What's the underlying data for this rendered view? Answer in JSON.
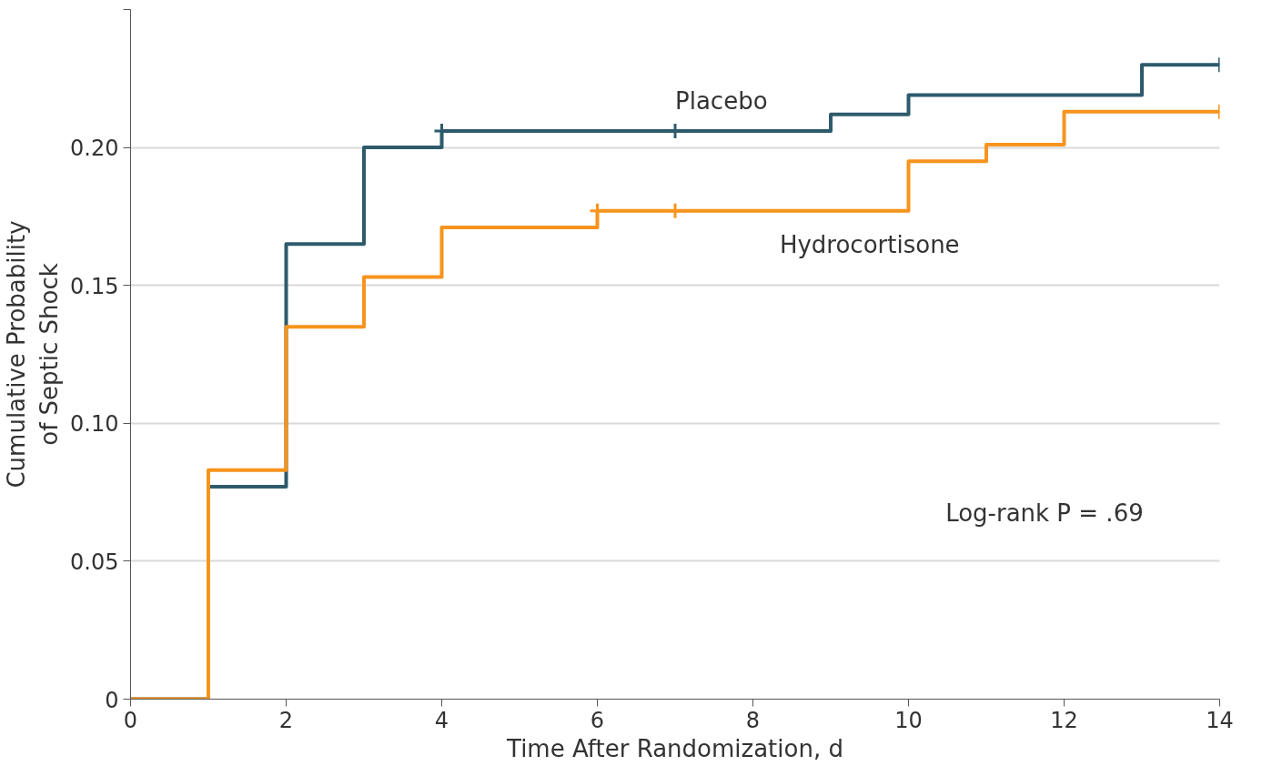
{
  "chart_data": {
    "type": "step",
    "xlabel": "Time After Randomization, d",
    "ylabel": "Cumulative Probability\nof Septic Shock",
    "xlim": [
      0,
      14
    ],
    "xticks": [
      0,
      2,
      4,
      6,
      8,
      10,
      12,
      14
    ],
    "ylim": [
      0,
      0.25
    ],
    "yticks": [
      0,
      {
        "value": 0.05,
        "label": "0.05"
      },
      {
        "value": 0.1,
        "label": "0.10"
      },
      {
        "value": 0.15,
        "label": "0.15"
      },
      {
        "value": 0.2,
        "label": "0.20"
      },
      {
        "value": 0.25,
        "label": null
      }
    ],
    "grid": "y",
    "line_style": "solid",
    "annotations": [
      "Log-rank P = .69"
    ],
    "series": [
      {
        "name": "Placebo",
        "color": "#2d5b6b",
        "x": [
          0,
          1,
          2,
          3,
          4,
          9,
          10,
          13,
          14
        ],
        "values": [
          0,
          0.077,
          0.165,
          0.2,
          0.206,
          0.212,
          0.219,
          0.23,
          0.23
        ]
      },
      {
        "name": "Hydrocortisone",
        "color": "#f7941d",
        "x": [
          0,
          1,
          2,
          3,
          4,
          6,
          10,
          11,
          12,
          14
        ],
        "values": [
          0,
          0.083,
          0.135,
          0.153,
          0.171,
          0.177,
          0.195,
          0.201,
          0.213,
          0.213
        ]
      },
      {
        "type": "scatter",
        "marker": "cross",
        "color": "#2d5b6b",
        "x": [
          4,
          7,
          14
        ],
        "values": [
          0.206,
          0.206,
          0.23
        ]
      },
      {
        "type": "scatter",
        "marker": "cross",
        "color": "#f7941d",
        "x": [
          6,
          7,
          14
        ],
        "values": [
          0.177,
          0.177,
          0.213
        ]
      }
    ]
  }
}
